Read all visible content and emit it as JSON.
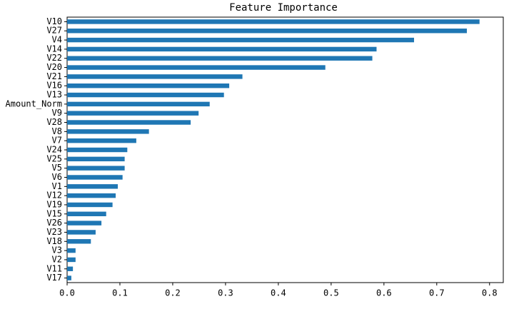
{
  "chart_data": {
    "type": "barh",
    "title": "Feature Importance",
    "categories": [
      "V10",
      "V27",
      "V4",
      "V14",
      "V22",
      "V20",
      "V21",
      "V16",
      "V13",
      "Amount_Norm",
      "V9",
      "V28",
      "V8",
      "V7",
      "V24",
      "V25",
      "V5",
      "V6",
      "V1",
      "V12",
      "V19",
      "V15",
      "V26",
      "V23",
      "V18",
      "V3",
      "V2",
      "V11",
      "V17"
    ],
    "values": [
      0.781,
      0.757,
      0.657,
      0.586,
      0.578,
      0.489,
      0.332,
      0.307,
      0.297,
      0.27,
      0.249,
      0.234,
      0.155,
      0.131,
      0.114,
      0.109,
      0.109,
      0.105,
      0.096,
      0.092,
      0.086,
      0.074,
      0.065,
      0.054,
      0.045,
      0.016,
      0.016,
      0.011,
      0.008
    ],
    "color": "#1f77b4",
    "xlim": [
      0,
      0.826
    ],
    "xticks": [
      {
        "value": 0,
        "label": "0.0"
      },
      0.1,
      0.2,
      0.3,
      0.4,
      0.5,
      0.6,
      0.7,
      0.8
    ],
    "grid": false
  }
}
